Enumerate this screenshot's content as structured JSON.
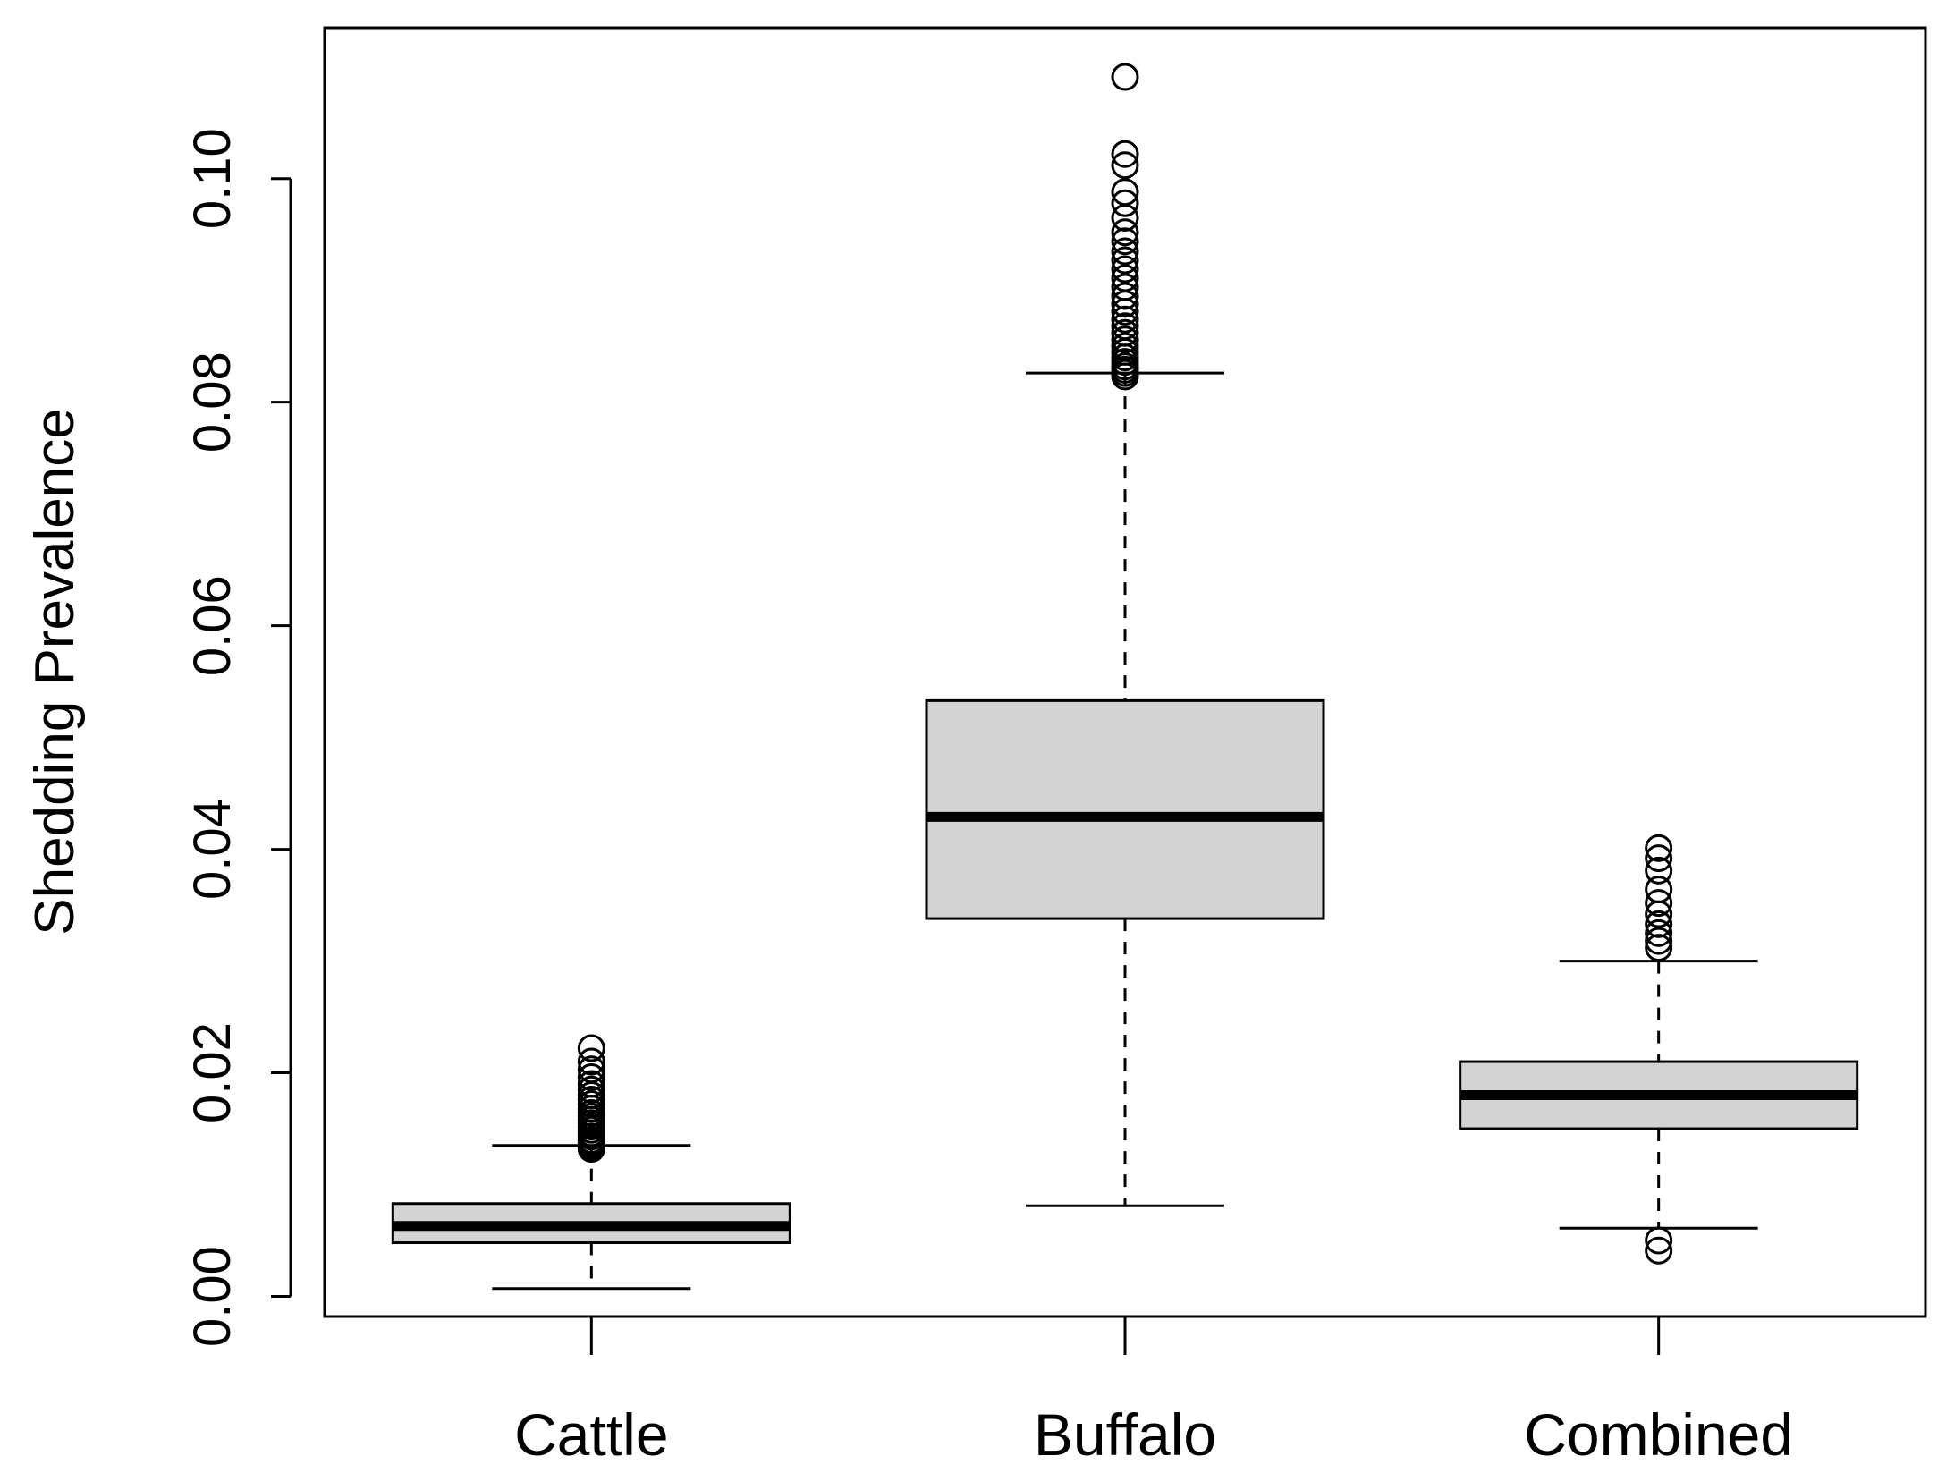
{
  "chart_data": {
    "type": "box",
    "ylabel": "Shedding Prevalence",
    "xlabel": "",
    "ylim": [
      -0.0018,
      0.1135
    ],
    "yticks": [
      {
        "value": 0.0,
        "label": "0.00"
      },
      {
        "value": 0.02,
        "label": "0.02"
      },
      {
        "value": 0.04,
        "label": "0.04"
      },
      {
        "value": 0.06,
        "label": "0.06"
      },
      {
        "value": 0.08,
        "label": "0.08"
      },
      {
        "value": 0.1,
        "label": "0.10"
      }
    ],
    "categories": [
      "Cattle",
      "Buffalo",
      "Combined"
    ],
    "boxes": [
      {
        "category": "Cattle",
        "whisker_low": 0.0007,
        "q1": 0.0048,
        "median": 0.0063,
        "q3": 0.0083,
        "whisker_high": 0.0135,
        "outliers": [
          0.0132,
          0.0134,
          0.0136,
          0.0138,
          0.014,
          0.0143,
          0.0146,
          0.0149,
          0.0152,
          0.0155,
          0.0158,
          0.0161,
          0.0164,
          0.0168,
          0.0172,
          0.0176,
          0.018,
          0.0185,
          0.019,
          0.0196,
          0.0203,
          0.021,
          0.0222
        ]
      },
      {
        "category": "Buffalo",
        "whisker_low": 0.0081,
        "q1": 0.0338,
        "median": 0.0429,
        "q3": 0.0533,
        "whisker_high": 0.0826,
        "outliers": [
          0.0823,
          0.0826,
          0.0829,
          0.0832,
          0.0836,
          0.084,
          0.0845,
          0.085,
          0.0856,
          0.0862,
          0.0868,
          0.0874,
          0.0881,
          0.0888,
          0.0895,
          0.0903,
          0.0911,
          0.0919,
          0.0927,
          0.0935,
          0.0944,
          0.0952,
          0.0965,
          0.0978,
          0.0988,
          0.1012,
          0.1022,
          0.1091
        ]
      },
      {
        "category": "Combined",
        "whisker_low": 0.0061,
        "q1": 0.015,
        "median": 0.018,
        "q3": 0.021,
        "whisker_high": 0.03,
        "outliers": [
          0.0041,
          0.005,
          0.0312,
          0.0318,
          0.0325,
          0.0333,
          0.0342,
          0.0352,
          0.0364,
          0.0381,
          0.0392,
          0.0401
        ]
      }
    ]
  }
}
